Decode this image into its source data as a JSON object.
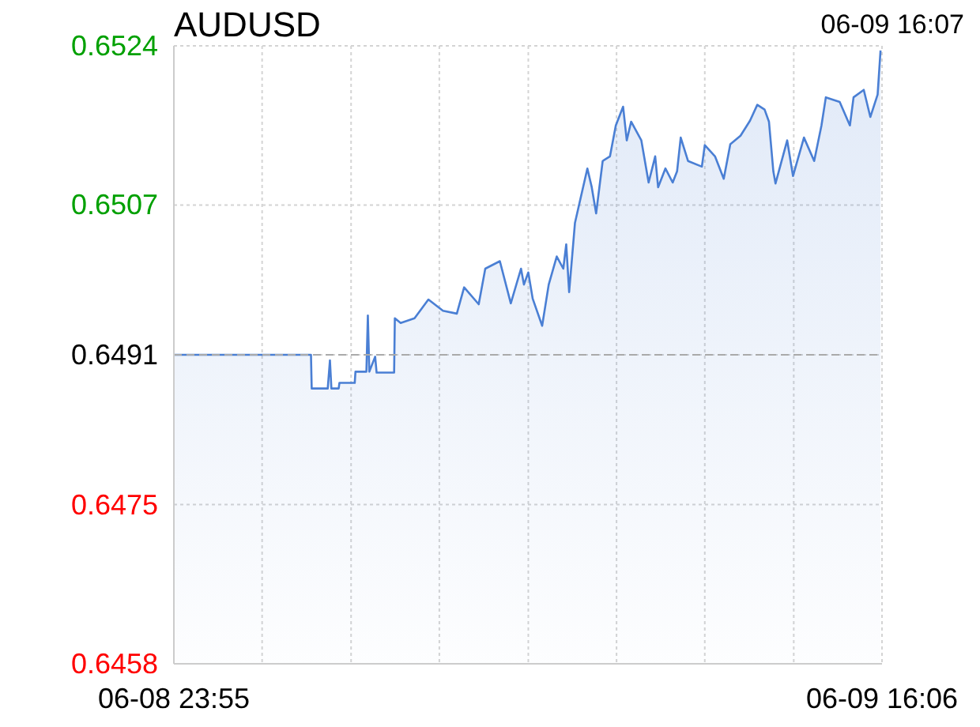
{
  "chart_data": {
    "type": "area",
    "title": "AUDUSD",
    "annotations": [
      "06-09 16:07"
    ],
    "x": [
      "--06-08T23:55",
      "--06-09T03:03",
      "--06-09T03:04",
      "--06-09T03:26",
      "--06-09T03:29",
      "--06-09T03:31",
      "--06-09T03:41",
      "--06-09T03:42",
      "--06-09T04:03",
      "--06-09T04:04",
      "--06-09T04:19",
      "--06-09T04:21",
      "--06-09T04:23",
      "--06-09T04:31",
      "--06-09T04:33",
      "--06-09T04:57",
      "--06-09T04:58",
      "--06-09T05:06",
      "--06-09T05:25",
      "--06-09T05:44",
      "--06-09T06:04",
      "--06-09T06:23",
      "--06-09T06:33",
      "--06-09T06:53",
      "--06-09T07:02",
      "--06-09T07:22",
      "--06-09T07:37",
      "--06-09T07:51",
      "--06-09T07:55",
      "--06-09T08:01",
      "--06-09T08:07",
      "--06-09T08:20",
      "--06-09T08:29",
      "--06-09T08:40",
      "--06-09T08:49",
      "--06-09T08:53",
      "--06-09T08:57",
      "--06-09T09:05",
      "--06-09T09:22",
      "--06-09T09:28",
      "--06-09T09:34",
      "--06-09T09:43",
      "--06-09T09:53",
      "--06-09T10:01",
      "--06-09T10:11",
      "--06-09T10:16",
      "--06-09T10:22",
      "--06-09T10:36",
      "--06-09T10:46",
      "--06-09T10:55",
      "--06-09T10:59",
      "--06-09T11:09",
      "--06-09T11:19",
      "--06-09T11:25",
      "--06-09T11:30",
      "--06-09T11:40",
      "--06-09T11:59",
      "--06-09T12:03",
      "--06-09T12:17",
      "--06-09T12:29",
      "--06-09T12:38",
      "--06-09T12:52",
      "--06-09T13:05",
      "--06-09T13:15",
      "--06-09T13:25",
      "--06-09T13:31",
      "--06-09T13:37",
      "--06-09T13:40",
      "--06-09T13:56",
      "--06-09T14:04",
      "--06-09T14:19",
      "--06-09T14:33",
      "--06-09T14:43",
      "--06-09T14:49",
      "--06-09T15:08",
      "--06-09T15:22",
      "--06-09T15:27",
      "--06-09T15:41",
      "--06-09T15:50",
      "--06-09T16:00",
      "--06-09T16:04"
    ],
    "series": [
      {
        "color": "#4a7fd4",
        "values": [
          0.6491,
          0.6491,
          0.64874,
          0.64874,
          0.64904,
          0.64874,
          0.64874,
          0.6488,
          0.6488,
          0.64892,
          0.64892,
          0.64952,
          0.64892,
          0.64908,
          0.64891,
          0.64891,
          0.64949,
          0.64944,
          0.64949,
          0.64969,
          0.64957,
          0.64954,
          0.64982,
          0.64964,
          0.65002,
          0.6501,
          0.64965,
          0.65002,
          0.64985,
          0.64998,
          0.6497,
          0.64941,
          0.64985,
          0.65015,
          0.65002,
          0.65028,
          0.64977,
          0.65051,
          0.65109,
          0.65089,
          0.65061,
          0.65117,
          0.65122,
          0.65155,
          0.65175,
          0.65139,
          0.65159,
          0.65139,
          0.65094,
          0.65122,
          0.65089,
          0.65109,
          0.65094,
          0.65106,
          0.65142,
          0.65117,
          0.65111,
          0.65134,
          0.65122,
          0.65098,
          0.65135,
          0.65144,
          0.6516,
          0.65177,
          0.65172,
          0.65159,
          0.65106,
          0.65093,
          0.65139,
          0.65101,
          0.65142,
          0.65117,
          0.65155,
          0.65185,
          0.6518,
          0.65155,
          0.65185,
          0.65193,
          0.65164,
          0.65188,
          0.65235
        ]
      }
    ],
    "xlim": [
      "--06-08T23:55",
      "--06-09T16:06"
    ],
    "xticks": [
      {
        "value": "--06-08T23:55",
        "label": "06-08 23:55"
      },
      {
        "value": "--06-09T01:56",
        "label": null
      },
      {
        "value": "--06-09T03:58",
        "label": null
      },
      {
        "value": "--06-09T05:59",
        "label": null
      },
      {
        "value": "--06-09T08:01",
        "label": null
      },
      {
        "value": "--06-09T10:02",
        "label": null
      },
      {
        "value": "--06-09T12:03",
        "label": null
      },
      {
        "value": "--06-09T14:05",
        "label": null
      },
      {
        "value": "--06-09T16:06",
        "label": "06-09 16:06"
      }
    ],
    "ylim": [
      0.6458,
      0.6524
    ],
    "yticks": [
      0.6458,
      0.6475,
      0.6491,
      0.6507,
      0.6524
    ],
    "ref_lines": [
      {
        "axis": "y",
        "value": 0.6491,
        "color": "#aaaaaa",
        "line_style": "dashed"
      }
    ],
    "grid": true,
    "marker": "none",
    "line_style": "solid"
  }
}
